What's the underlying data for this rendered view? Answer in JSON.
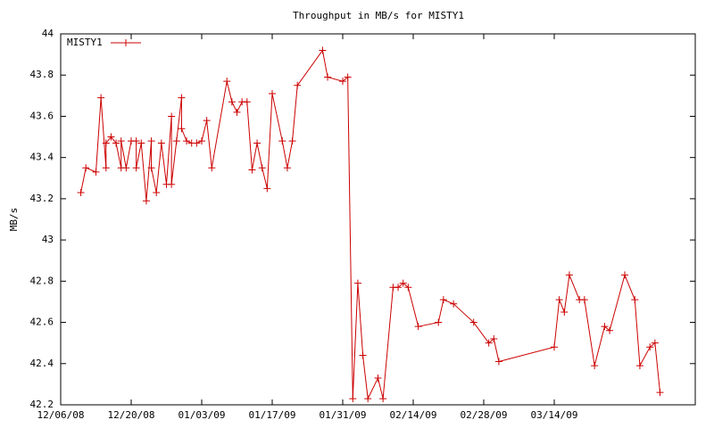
{
  "chart_data": {
    "type": "line",
    "title": "Throughput in MB/s for MISTY1",
    "y_label": "MB/s",
    "x": [
      "12/10/08",
      "12/11/08",
      "12/13/08",
      "12/14/08",
      "12/15/08",
      "12/15/08",
      "12/16/08",
      "12/17/08",
      "12/18/08",
      "12/18/08",
      "12/19/08",
      "12/20/08",
      "12/21/08",
      "12/21/08",
      "12/22/08",
      "12/23/08",
      "12/24/08",
      "12/24/08",
      "12/25/08",
      "12/26/08",
      "12/27/08",
      "12/28/08",
      "12/28/08",
      "12/29/08",
      "12/30/08",
      "12/30/08",
      "12/31/08",
      "01/01/09",
      "01/02/09",
      "01/03/09",
      "01/04/09",
      "01/05/09",
      "01/08/09",
      "01/09/09",
      "01/10/09",
      "01/11/09",
      "01/12/09",
      "01/13/09",
      "01/14/09",
      "01/15/09",
      "01/16/09",
      "01/17/09",
      "01/19/09",
      "01/20/09",
      "01/21/09",
      "01/22/09",
      "01/27/09",
      "01/28/09",
      "01/31/09",
      "02/01/09",
      "02/02/09",
      "02/03/09",
      "02/04/09",
      "02/05/09",
      "02/07/09",
      "02/08/09",
      "02/10/09",
      "02/11/09",
      "02/12/09",
      "02/13/09",
      "02/15/09",
      "02/19/09",
      "02/20/09",
      "02/22/09",
      "02/26/09",
      "03/01/09",
      "03/02/09",
      "03/03/09",
      "03/14/09",
      "03/15/09",
      "03/16/09",
      "03/17/09",
      "03/19/09",
      "03/20/09",
      "03/22/09",
      "03/24/09",
      "03/25/09",
      "03/28/09",
      "03/30/09",
      "03/31/09",
      "04/02/09",
      "04/03/09",
      "04/04/09"
    ],
    "series": [
      {
        "name": "MISTY1",
        "color": "#cc0000",
        "values": [
          43.23,
          43.35,
          43.33,
          43.69,
          43.35,
          43.47,
          43.5,
          43.47,
          43.35,
          43.48,
          43.35,
          43.48,
          43.48,
          43.35,
          43.47,
          43.19,
          43.48,
          43.35,
          43.23,
          43.47,
          43.27,
          43.6,
          43.27,
          43.48,
          43.69,
          43.54,
          43.48,
          43.47,
          43.47,
          43.48,
          43.58,
          43.35,
          43.77,
          43.67,
          43.62,
          43.67,
          43.67,
          43.34,
          43.47,
          43.35,
          43.25,
          43.71,
          43.48,
          43.35,
          43.48,
          43.75,
          43.92,
          43.79,
          43.77,
          43.79,
          42.23,
          42.79,
          42.44,
          42.23,
          42.33,
          42.23,
          42.77,
          42.77,
          42.79,
          42.77,
          42.58,
          42.6,
          42.71,
          42.69,
          42.6,
          42.5,
          42.52,
          42.41,
          42.48,
          42.71,
          42.65,
          42.83,
          42.71,
          42.71,
          42.39,
          42.58,
          42.56,
          42.83,
          42.71,
          42.39,
          42.48,
          42.5,
          42.26
        ]
      }
    ],
    "xlim": [
      "12/06/08",
      "04/11/09"
    ],
    "xticks": [
      "12/06/08",
      "12/20/08",
      "01/03/09",
      "01/17/09",
      "01/31/09",
      "02/14/09",
      "02/28/09",
      "03/14/09"
    ],
    "ylim": [
      42.2,
      44
    ],
    "yticks": [
      42.2,
      42.4,
      42.6,
      42.8,
      43,
      43.2,
      43.4,
      43.6,
      43.8,
      44
    ],
    "legend": "top-left",
    "grid": false
  }
}
